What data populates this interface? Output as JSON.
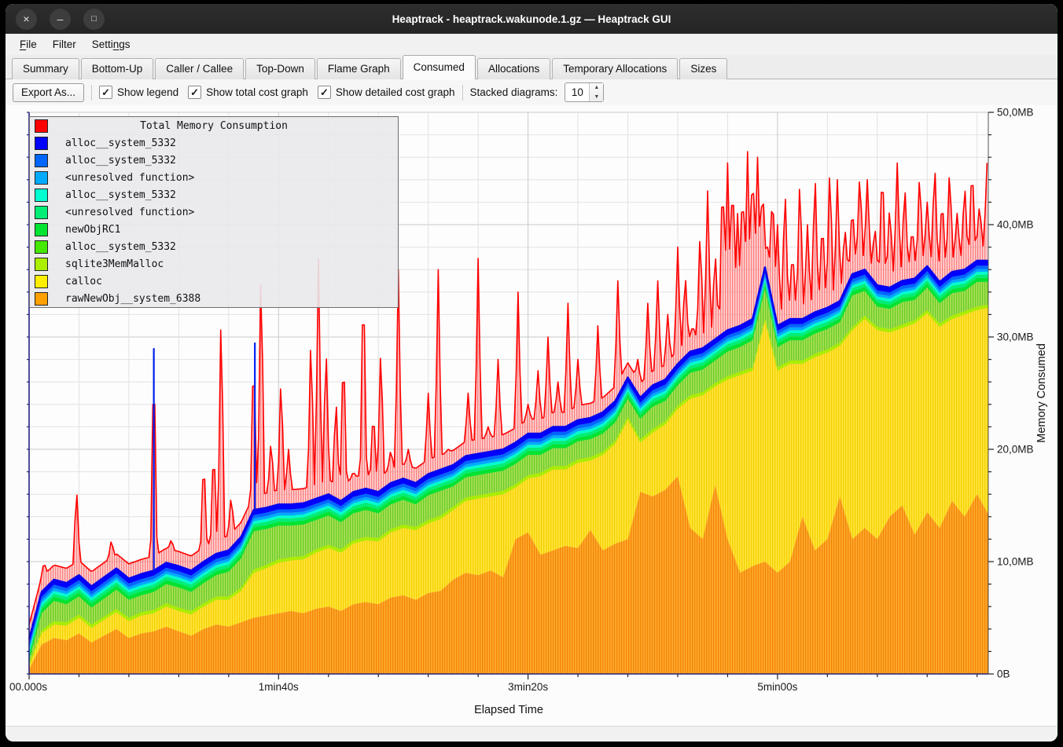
{
  "window": {
    "title": "Heaptrack - heaptrack.wakunode.1.gz — Heaptrack GUI",
    "buttons": [
      {
        "name": "close",
        "glyph": "×"
      },
      {
        "name": "minimize",
        "glyph": "–"
      },
      {
        "name": "maximize",
        "glyph": "□"
      }
    ]
  },
  "menu": {
    "items": [
      {
        "label": "File",
        "accel_index": 0
      },
      {
        "label": "Filter",
        "accel_index": -1
      },
      {
        "label": "Settings",
        "accel_index": 5
      }
    ]
  },
  "tabs": {
    "active": "Consumed",
    "items": [
      "Summary",
      "Bottom-Up",
      "Caller / Callee",
      "Top-Down",
      "Flame Graph",
      "Consumed",
      "Allocations",
      "Temporary Allocations",
      "Sizes"
    ]
  },
  "toolbar": {
    "export_label": "Export As...",
    "checkboxes": [
      {
        "label": "Show legend",
        "checked": true
      },
      {
        "label": "Show total cost graph",
        "checked": true
      },
      {
        "label": "Show detailed cost graph",
        "checked": true
      }
    ],
    "stacked_label": "Stacked diagrams:",
    "stacked_value": "10"
  },
  "legend": {
    "title": "Total Memory Consumption",
    "title_color": "#ff0000",
    "items": [
      {
        "label": "alloc__system_5332",
        "color": "#0000ff"
      },
      {
        "label": "alloc__system_5332",
        "color": "#0066ff"
      },
      {
        "label": "<unresolved function>",
        "color": "#00aaff"
      },
      {
        "label": "alloc__system_5332",
        "color": "#00ffd0"
      },
      {
        "label": "<unresolved function>",
        "color": "#00ee76"
      },
      {
        "label": "newObjRC1",
        "color": "#00e431"
      },
      {
        "label": "alloc__system_5332",
        "color": "#44e800"
      },
      {
        "label": "sqlite3MemMalloc",
        "color": "#aaee00"
      },
      {
        "label": "calloc",
        "color": "#ffee00"
      },
      {
        "label": "rawNewObj__system_6388",
        "color": "#ffa000"
      }
    ]
  },
  "chart_data": {
    "type": "area",
    "stacked": true,
    "title": "Total Memory Consumption",
    "xlabel": "Elapsed Time",
    "ylabel": "Memory Consumed",
    "unit": "MB",
    "xlim": [
      0,
      384.5
    ],
    "ylim": [
      0,
      50
    ],
    "x_start": 0,
    "x_step": 5,
    "x_major_ticks": [
      {
        "t": 0,
        "label": "00.000s"
      },
      {
        "t": 100,
        "label": "1min40s"
      },
      {
        "t": 200,
        "label": "3min20s"
      },
      {
        "t": 300,
        "label": "5min00s"
      }
    ],
    "x_minor_step": 20,
    "y_major_ticks": [
      {
        "v": 0,
        "label": "0B"
      },
      {
        "v": 10,
        "label": "10,0MB"
      },
      {
        "v": 20,
        "label": "20,0MB"
      },
      {
        "v": 30,
        "label": "30,0MB"
      },
      {
        "v": 40,
        "label": "40,0MB"
      },
      {
        "v": 50,
        "label": "50,0MB"
      }
    ],
    "y_minor_step": 2,
    "grid": true,
    "legend_position": "top-left",
    "series": [
      {
        "name": "rawNewObj__system_6388",
        "color": "#ffa000",
        "fill": "hatch",
        "values": [
          0.4,
          2.6,
          3.2,
          3.0,
          3.6,
          2.8,
          3.4,
          4.0,
          3.2,
          3.6,
          3.8,
          4.2,
          3.8,
          3.4,
          4.0,
          4.4,
          4.2,
          4.6,
          5.0,
          5.2,
          5.4,
          5.6,
          5.4,
          5.8,
          6.0,
          5.6,
          6.2,
          6.4,
          6.2,
          6.8,
          7.0,
          6.6,
          7.2,
          7.4,
          8.4,
          9.0,
          8.8,
          9.2,
          8.6,
          12.0,
          12.6,
          10.6,
          11.0,
          11.4,
          11.2,
          12.8,
          11.0,
          11.6,
          12.0,
          16.2,
          15.8,
          16.4,
          17.6,
          13.0,
          12.0,
          16.8,
          12.0,
          9.0,
          9.6,
          10.0,
          9.0,
          10.0,
          14.0,
          11.0,
          12.0,
          15.8,
          12.0,
          13.0,
          12.0,
          14.0,
          15.0,
          12.4,
          14.4,
          13.0,
          15.4,
          14.0,
          16.0,
          14.2
        ]
      },
      {
        "name": "calloc",
        "color": "#ffee00",
        "fill": "hatch",
        "values": [
          0.3,
          1.0,
          1.2,
          1.3,
          1.4,
          1.3,
          1.4,
          1.5,
          1.5,
          1.6,
          1.6,
          1.8,
          1.8,
          1.9,
          2.0,
          2.2,
          2.4,
          2.8,
          4.0,
          4.2,
          4.5,
          4.5,
          4.8,
          5.0,
          5.2,
          5.2,
          5.4,
          5.5,
          5.6,
          5.8,
          6.0,
          6.2,
          6.2,
          6.4,
          6.2,
          6.4,
          6.8,
          6.6,
          7.4,
          4.6,
          4.8,
          7.0,
          7.2,
          6.8,
          7.6,
          6.2,
          8.5,
          8.9,
          10.6,
          4.4,
          5.7,
          5.8,
          6.0,
          11.5,
          12.8,
          8.8,
          14.2,
          17.6,
          17.4,
          21.4,
          18.0,
          17.6,
          13.6,
          17.2,
          16.6,
          13.4,
          18.6,
          18.6,
          18.6,
          16.4,
          15.8,
          18.8,
          17.7,
          17.9,
          16.2,
          18.0,
          16.4,
          18.4
        ]
      },
      {
        "name": "sqlite3MemMalloc",
        "color": "#aaee00",
        "constant": 0.3
      },
      {
        "name": "alloc__system_5332",
        "color": "#44e800",
        "fill": "hatch",
        "values": [
          0.2,
          1.5,
          1.8,
          1.6,
          1.6,
          1.5,
          1.6,
          1.7,
          1.6,
          1.5,
          1.6,
          1.7,
          1.8,
          1.7,
          1.8,
          1.9,
          2.2,
          2.6,
          3.4,
          3.2,
          3.0,
          2.8,
          2.8,
          2.6,
          2.6,
          2.4,
          2.4,
          2.4,
          2.2,
          2.2,
          2.2,
          2.0,
          2.2,
          2.2,
          1.8,
          1.8,
          1.8,
          1.8,
          1.8,
          1.8,
          1.8,
          1.6,
          1.6,
          1.6,
          1.6,
          1.6,
          1.6,
          1.6,
          1.6,
          1.8,
          2.0,
          1.8,
          1.8,
          2.0,
          2.0,
          2.0,
          2.2,
          2.2,
          2.4,
          2.6,
          1.8,
          1.8,
          1.8,
          1.8,
          1.8,
          1.8,
          2.8,
          2.2,
          1.8,
          1.8,
          2.0,
          1.8,
          2.0,
          1.8,
          2.0,
          1.8,
          2.2,
          2.0
        ]
      },
      {
        "name": "newObjRC1",
        "color": "#00e431",
        "constant": 0.35
      },
      {
        "name": "<unresolved function>",
        "color": "#00ee76",
        "constant": 0.3
      },
      {
        "name": "alloc__system_5332",
        "color": "#00ffd0",
        "constant": 0.25
      },
      {
        "name": "<unresolved function>",
        "color": "#00aaff",
        "constant": 0.25
      },
      {
        "name": "alloc__system_5332",
        "color": "#0066ff",
        "constant": 0.3
      },
      {
        "name": "alloc__system_5332",
        "color": "#0000ff",
        "constant": 0.45,
        "top_line": true
      }
    ],
    "total": {
      "name": "Total Memory Consumption",
      "color": "#ff0000",
      "baseline_offset": 1.3,
      "spike_halfwidth": 1.3,
      "spikes": [
        [
          6,
          10
        ],
        [
          13,
          9
        ],
        [
          19,
          17
        ],
        [
          26,
          9
        ],
        [
          33,
          12
        ],
        [
          40,
          9.5
        ],
        [
          45,
          8.5
        ],
        [
          50,
          30
        ],
        [
          57,
          12
        ],
        [
          63,
          10
        ],
        [
          70,
          20
        ],
        [
          74,
          21
        ],
        [
          77,
          34
        ],
        [
          81,
          16
        ],
        [
          85,
          13
        ],
        [
          90,
          30
        ],
        [
          93,
          38
        ],
        [
          97,
          21
        ],
        [
          101,
          27
        ],
        [
          104,
          20
        ],
        [
          108,
          14
        ],
        [
          113,
          31
        ],
        [
          116,
          37
        ],
        [
          119,
          30
        ],
        [
          123,
          25
        ],
        [
          126,
          30
        ],
        [
          130,
          18
        ],
        [
          134,
          37
        ],
        [
          138,
          24
        ],
        [
          141,
          30
        ],
        [
          145,
          20
        ],
        [
          148,
          36
        ],
        [
          152,
          20
        ],
        [
          156,
          17
        ],
        [
          160,
          25
        ],
        [
          164,
          36
        ],
        [
          168,
          20
        ],
        [
          172,
          17
        ],
        [
          176,
          25
        ],
        [
          180,
          37
        ],
        [
          184,
          22
        ],
        [
          188,
          28
        ],
        [
          192,
          20
        ],
        [
          196,
          34
        ],
        [
          200,
          24
        ],
        [
          204,
          27
        ],
        [
          208,
          30
        ],
        [
          212,
          26
        ],
        [
          216,
          33
        ],
        [
          220,
          28
        ],
        [
          224,
          24
        ],
        [
          228,
          31
        ],
        [
          232,
          24
        ],
        [
          236,
          35
        ],
        [
          240,
          26
        ],
        [
          244,
          28
        ],
        [
          248,
          33
        ],
        [
          252,
          35
        ],
        [
          256,
          32
        ],
        [
          260,
          38
        ],
        [
          263,
          36
        ],
        [
          266,
          31
        ],
        [
          269,
          40
        ],
        [
          272,
          43
        ],
        [
          275,
          38
        ],
        [
          278,
          46
        ],
        [
          280,
          45.5
        ],
        [
          282,
          46
        ],
        [
          284,
          41
        ],
        [
          286,
          45
        ],
        [
          288,
          46.5
        ],
        [
          290,
          47
        ],
        [
          292,
          46
        ],
        [
          294,
          44
        ],
        [
          296,
          38
        ],
        [
          298,
          44
        ],
        [
          300,
          40
        ],
        [
          303,
          44
        ],
        [
          306,
          38
        ],
        [
          309,
          45
        ],
        [
          312,
          40
        ],
        [
          315,
          45.5
        ],
        [
          318,
          41
        ],
        [
          321,
          46
        ],
        [
          324,
          44
        ],
        [
          327,
          40
        ],
        [
          330,
          42
        ],
        [
          333,
          45
        ],
        [
          336,
          44
        ],
        [
          339,
          40
        ],
        [
          342,
          46
        ],
        [
          345,
          42
        ],
        [
          348,
          45.5
        ],
        [
          351,
          44
        ],
        [
          354,
          40
        ],
        [
          357,
          45
        ],
        [
          360,
          42
        ],
        [
          363,
          46
        ],
        [
          366,
          43
        ],
        [
          369,
          45.5
        ],
        [
          372,
          41
        ],
        [
          375,
          44
        ],
        [
          378,
          46
        ],
        [
          381,
          42
        ],
        [
          384,
          45.5
        ]
      ]
    },
    "blue_spikes": [
      [
        50,
        29
      ],
      [
        90.5,
        29.5
      ]
    ]
  }
}
